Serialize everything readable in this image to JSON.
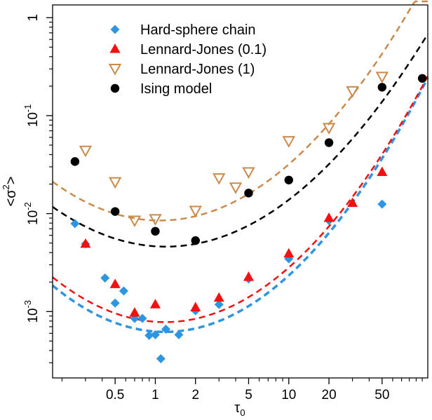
{
  "chart_data": {
    "type": "scatter",
    "title": "",
    "xlabel": {
      "base": "τ",
      "sub": "0"
    },
    "ylabel": {
      "pre": "<σ",
      "sup": "2",
      "post": ">"
    },
    "x_scale": "log",
    "y_scale": "log",
    "xlim": [
      0.17,
      110
    ],
    "ylim": [
      0.00021,
      1.35
    ],
    "grid": false,
    "legend_position": "top-left",
    "x_ticks": [
      {
        "v": 0.5,
        "label": "0.5"
      },
      {
        "v": 1,
        "label": "1"
      },
      {
        "v": 2,
        "label": "2"
      },
      {
        "v": 5,
        "label": "5"
      },
      {
        "v": 10,
        "label": "10"
      },
      {
        "v": 20,
        "label": "20"
      },
      {
        "v": 50,
        "label": "50"
      }
    ],
    "x_minor_ticks": [
      0.2,
      0.3,
      0.4,
      0.6,
      0.7,
      0.8,
      0.9,
      3,
      4,
      6,
      7,
      8,
      9,
      30,
      40,
      60,
      70,
      80,
      90,
      100
    ],
    "y_ticks": [
      {
        "v": 0.001,
        "base": "10",
        "exp": "-3"
      },
      {
        "v": 0.01,
        "base": "10",
        "exp": "-2"
      },
      {
        "v": 0.1,
        "base": "10",
        "exp": "-1"
      },
      {
        "v": 1,
        "base": "1",
        "exp": ""
      }
    ],
    "series": [
      {
        "name": "Hard-sphere chain",
        "marker": "diamond",
        "color": "#2E95E0",
        "points": [
          [
            0.25,
            0.0079
          ],
          [
            0.3,
            0.0049
          ],
          [
            0.42,
            0.0022
          ],
          [
            0.5,
            0.00122
          ],
          [
            0.58,
            0.00162
          ],
          [
            0.7,
            0.00085
          ],
          [
            0.8,
            0.00085
          ],
          [
            0.9,
            0.00057
          ],
          [
            1.0,
            0.00058
          ],
          [
            1.1,
            0.00033
          ],
          [
            1.2,
            0.00066
          ],
          [
            1.5,
            0.00058
          ],
          [
            2,
            0.00102
          ],
          [
            3,
            0.00118
          ],
          [
            5,
            0.00215
          ],
          [
            10,
            0.00345
          ],
          [
            20,
            0.0085
          ],
          [
            50,
            0.0125
          ]
        ],
        "fit": {
          "min_x": 1.18,
          "min_y": 0.00062,
          "line_width": 3.5
        }
      },
      {
        "name": "Lennard-Jones (0.1)",
        "marker": "triangle-up",
        "color": "#F21010",
        "points": [
          [
            0.3,
            0.0049
          ],
          [
            0.5,
            0.0019
          ],
          [
            0.7,
            0.00097
          ],
          [
            1.0,
            0.00118
          ],
          [
            2,
            0.0011
          ],
          [
            3,
            0.00138
          ],
          [
            5,
            0.00225
          ],
          [
            10,
            0.0039
          ],
          [
            20,
            0.009
          ],
          [
            30,
            0.0128
          ],
          [
            50,
            0.0265
          ]
        ],
        "fit": {
          "min_x": 1.18,
          "min_y": 0.00078,
          "line_width": 2.5
        }
      },
      {
        "name": "Lennard-Jones (1)",
        "marker": "triangle-down-open",
        "color": "#C98A4B",
        "points": [
          [
            0.3,
            0.044
          ],
          [
            0.5,
            0.021
          ],
          [
            0.7,
            0.0085
          ],
          [
            1.0,
            0.0088
          ],
          [
            2,
            0.0107
          ],
          [
            3,
            0.023
          ],
          [
            4,
            0.0185
          ],
          [
            5,
            0.0265
          ],
          [
            10,
            0.055
          ],
          [
            20,
            0.075
          ],
          [
            30,
            0.178
          ],
          [
            50,
            0.25
          ]
        ],
        "fit": {
          "min_x": 1.08,
          "min_y": 0.0085,
          "line_width": 2.5
        }
      },
      {
        "name": "Ising model",
        "marker": "circle",
        "color": "#000000",
        "points": [
          [
            0.25,
            0.034
          ],
          [
            0.5,
            0.0105
          ],
          [
            1.0,
            0.0066
          ],
          [
            2,
            0.0053
          ],
          [
            5,
            0.0162
          ],
          [
            10,
            0.022
          ],
          [
            20,
            0.053
          ],
          [
            50,
            0.195
          ],
          [
            100,
            0.24
          ]
        ],
        "fit": {
          "min_x": 1.2,
          "min_y": 0.0046,
          "line_width": 2.5
        }
      }
    ]
  }
}
